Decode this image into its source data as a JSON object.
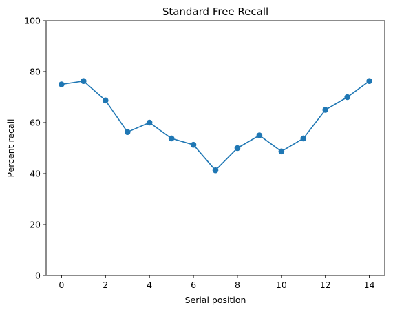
{
  "chart_data": {
    "type": "line",
    "title": "Standard Free Recall",
    "xlabel": "Serial position",
    "ylabel": "Percent recall",
    "x": [
      0,
      1,
      2,
      3,
      4,
      5,
      6,
      7,
      8,
      9,
      10,
      11,
      12,
      13,
      14
    ],
    "series": [
      {
        "values": [
          75.0,
          76.3,
          68.7,
          56.3,
          60.0,
          53.8,
          51.3,
          41.3,
          50.0,
          55.0,
          48.7,
          53.8,
          65.0,
          70.0,
          76.3
        ]
      }
    ],
    "xlim": [
      -0.7,
      14.7
    ],
    "ylim": [
      0,
      100
    ],
    "xticks": [
      0,
      2,
      4,
      6,
      8,
      10,
      12,
      14
    ],
    "yticks": [
      0,
      20,
      40,
      60,
      80,
      100
    ],
    "grid": false,
    "marker": "circle",
    "colors": {
      "line": "#1f77b4",
      "axes": "#000000"
    }
  }
}
